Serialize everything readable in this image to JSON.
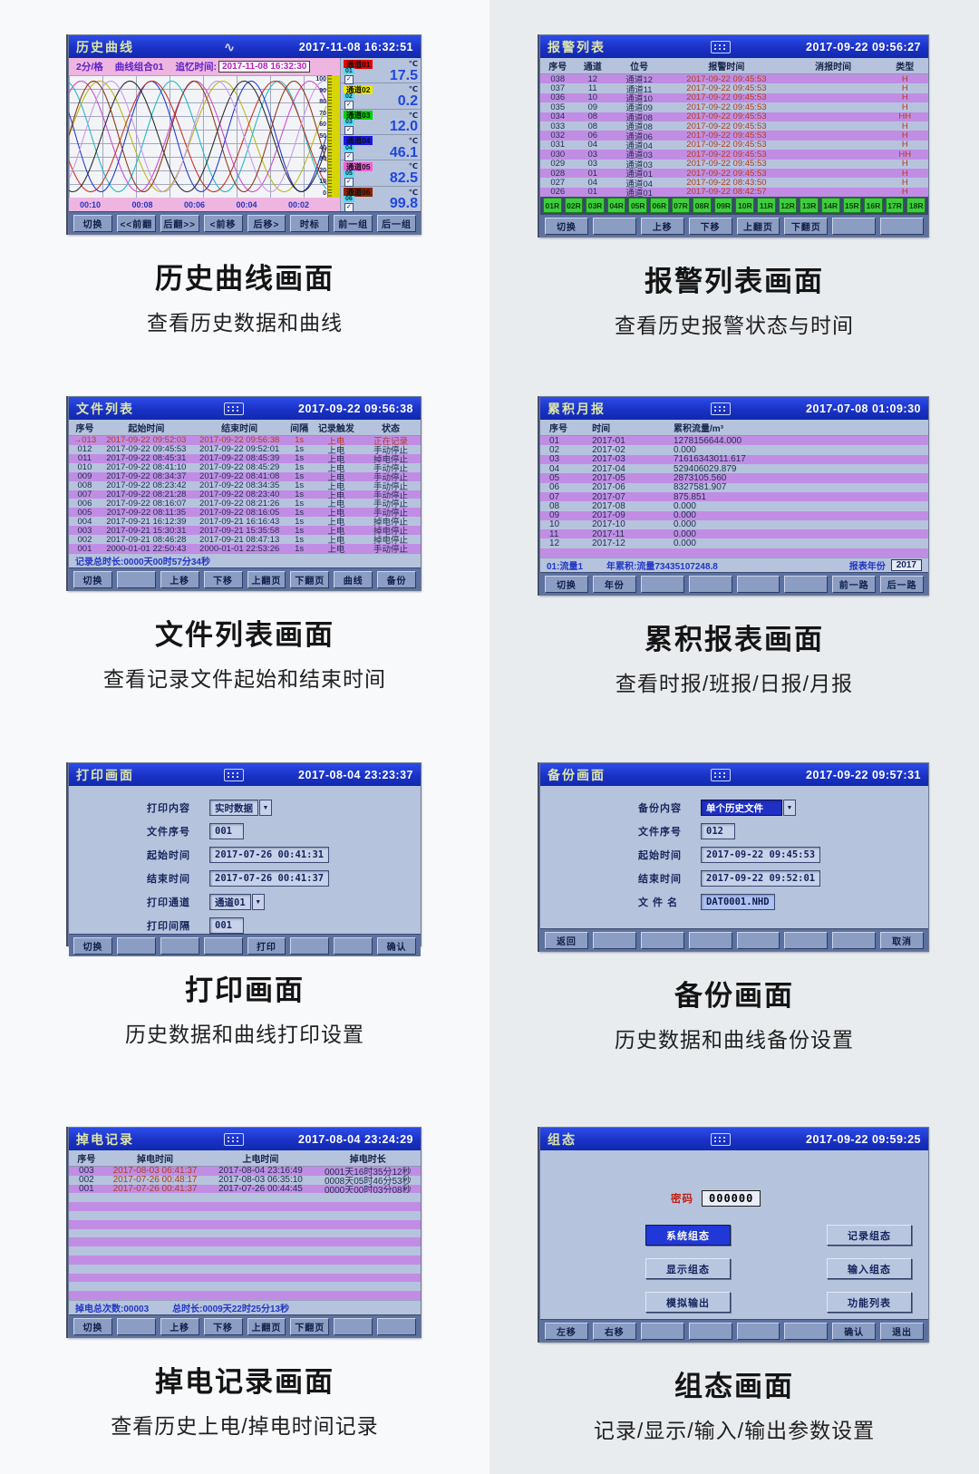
{
  "panels": {
    "history": {
      "title": "历史曲线",
      "logo": "∿",
      "datetime": "2017-11-08 16:32:51",
      "caption": "历史曲线画面",
      "caption_sub": "查看历史数据和曲线",
      "info": {
        "interval": "2分/格",
        "group": "曲线组合01",
        "recall_label": "追忆时间:",
        "recall_value": "2017-11-08 16:32:30"
      },
      "scale_ticks": [
        "100",
        "90",
        "80",
        "70",
        "60",
        "50",
        "40",
        "30",
        "20",
        "10",
        "0"
      ],
      "time_labels": [
        "00:10",
        "00:08",
        "00:06",
        "00:04",
        "00:02"
      ],
      "curve_colors": [
        "#b8b818",
        "#d048d0",
        "#20b8c8",
        "#2038d0",
        "#c83020",
        "#282828",
        "#c898e8",
        "#8a3810"
      ],
      "channels": [
        {
          "name": "通道01",
          "color": "#e80000",
          "num": "01",
          "value": "17.5",
          "unit": "℃"
        },
        {
          "name": "通道02",
          "color": "#e8e800",
          "num": "02",
          "value": "0.2",
          "unit": "℃"
        },
        {
          "name": "通道03",
          "color": "#00d000",
          "num": "03",
          "value": "12.0",
          "unit": "℃"
        },
        {
          "name": "通道04",
          "color": "#1818e8",
          "num": "04",
          "value": "46.1",
          "unit": "℃"
        },
        {
          "name": "通道05",
          "color": "#f060d8",
          "num": "05",
          "value": "82.5",
          "unit": "℃"
        },
        {
          "name": "通道06",
          "color": "#8a2400",
          "num": "06",
          "value": "99.8",
          "unit": "℃"
        }
      ],
      "buttons": [
        "切换",
        "<<前翻",
        "后翻>>",
        "<前移",
        "后移>",
        "时标",
        "前一组",
        "后一组"
      ]
    },
    "alarm": {
      "title": "报警列表",
      "datetime": "2017-09-22 09:56:27",
      "caption": "报警列表画面",
      "caption_sub": "查看历史报警状态与时间",
      "headers": [
        "序号",
        "通道",
        "位号",
        "报警时间",
        "消报时间",
        "类型"
      ],
      "rows": [
        [
          "038",
          "12",
          "通道12",
          "2017-09-22 09:45:53",
          "",
          "H"
        ],
        [
          "037",
          "11",
          "通道11",
          "2017-09-22 09:45:53",
          "",
          "H"
        ],
        [
          "036",
          "10",
          "通道10",
          "2017-09-22 09:45:53",
          "",
          "H"
        ],
        [
          "035",
          "09",
          "通道09",
          "2017-09-22 09:45:53",
          "",
          "H"
        ],
        [
          "034",
          "08",
          "通道08",
          "2017-09-22 09:45:53",
          "",
          "HH"
        ],
        [
          "033",
          "08",
          "通道08",
          "2017-09-22 09:45:53",
          "",
          "H"
        ],
        [
          "032",
          "06",
          "通道06",
          "2017-09-22 09:45:53",
          "",
          "H"
        ],
        [
          "031",
          "04",
          "通道04",
          "2017-09-22 09:45:53",
          "",
          "H"
        ],
        [
          "030",
          "03",
          "通道03",
          "2017-09-22 09:45:53",
          "",
          "HH"
        ],
        [
          "029",
          "03",
          "通道03",
          "2017-09-22 09:45:53",
          "",
          "H"
        ],
        [
          "028",
          "01",
          "通道01",
          "2017-09-22 09:45:53",
          "",
          "H"
        ],
        [
          "027",
          "04",
          "通道04",
          "2017-09-22 08:43:50",
          "",
          "H"
        ],
        [
          "026",
          "01",
          "通道01",
          "2017-09-22 08:42:57",
          "",
          "H"
        ]
      ],
      "tags": [
        "01R",
        "02R",
        "03R",
        "04R",
        "05R",
        "06R",
        "07R",
        "08R",
        "09R",
        "10R",
        "11R",
        "12R",
        "13R",
        "14R",
        "15R",
        "16R",
        "17R",
        "18R"
      ],
      "buttons": [
        "切换",
        "",
        "上移",
        "下移",
        "上翻页",
        "下翻页",
        "",
        ""
      ]
    },
    "files": {
      "title": "文件列表",
      "datetime": "2017-09-22 09:56:38",
      "caption": "文件列表画面",
      "caption_sub": "查看记录文件起始和结束时间",
      "headers": [
        "序号",
        "起始时间",
        "结束时间",
        "间隔",
        "记录触发",
        "状态"
      ],
      "rows": [
        [
          "→013",
          "2017-09-22 09:52:03",
          "2017-09-22 09:56:38",
          "1s",
          "上电",
          "正在记录"
        ],
        [
          "012",
          "2017-09-22 09:45:53",
          "2017-09-22 09:52:01",
          "1s",
          "上电",
          "手动停止"
        ],
        [
          "011",
          "2017-09-22 08:45:31",
          "2017-09-22 08:45:39",
          "1s",
          "上电",
          "掉电停止"
        ],
        [
          "010",
          "2017-09-22 08:41:10",
          "2017-09-22 08:45:29",
          "1s",
          "上电",
          "手动停止"
        ],
        [
          "009",
          "2017-09-22 08:34:37",
          "2017-09-22 08:41:08",
          "1s",
          "上电",
          "手动停止"
        ],
        [
          "008",
          "2017-09-22 08:23:42",
          "2017-09-22 08:34:35",
          "1s",
          "上电",
          "手动停止"
        ],
        [
          "007",
          "2017-09-22 08:21:28",
          "2017-09-22 08:23:40",
          "1s",
          "上电",
          "手动停止"
        ],
        [
          "006",
          "2017-09-22 08:16:07",
          "2017-09-22 08:21:26",
          "1s",
          "上电",
          "手动停止"
        ],
        [
          "005",
          "2017-09-22 08:11:35",
          "2017-09-22 08:16:05",
          "1s",
          "上电",
          "手动停止"
        ],
        [
          "004",
          "2017-09-21 16:12:39",
          "2017-09-21 16:16:43",
          "1s",
          "上电",
          "掉电停止"
        ],
        [
          "003",
          "2017-09-21 15:30:31",
          "2017-09-21 15:35:58",
          "1s",
          "上电",
          "掉电停止"
        ],
        [
          "002",
          "2017-09-21 08:46:28",
          "2017-09-21 08:47:13",
          "1s",
          "上电",
          "掉电停止"
        ],
        [
          "001",
          "2000-01-01 22:50:43",
          "2000-01-01 22:53:26",
          "1s",
          "上电",
          "手动停止"
        ]
      ],
      "footer": "记录总时长:0000天00时57分34秒",
      "buttons": [
        "切换",
        "",
        "上移",
        "下移",
        "上翻页",
        "下翻页",
        "曲线",
        "备份"
      ]
    },
    "monthly": {
      "title": "累积月报",
      "datetime": "2017-07-08 01:09:30",
      "caption": "累积报表画面",
      "caption_sub": "查看时报/班报/日报/月报",
      "headers": [
        "序号",
        "时间",
        "累积流量/m³"
      ],
      "rows": [
        [
          "01",
          "2017-01",
          "1278156644.000"
        ],
        [
          "02",
          "2017-02",
          "0.000"
        ],
        [
          "03",
          "2017-03",
          "71616343011.617"
        ],
        [
          "04",
          "2017-04",
          "529406029.879"
        ],
        [
          "05",
          "2017-05",
          "2873105.560"
        ],
        [
          "06",
          "2017-06",
          "8327581.907"
        ],
        [
          "07",
          "2017-07",
          "875.851"
        ],
        [
          "08",
          "2017-08",
          "0.000"
        ],
        [
          "09",
          "2017-09",
          "0.000"
        ],
        [
          "10",
          "2017-10",
          "0.000"
        ],
        [
          "11",
          "2017-11",
          "0.000"
        ],
        [
          "12",
          "2017-12",
          "0.000"
        ]
      ],
      "footer_left": "01:流量1",
      "footer_mid": "年累积:流量73435107248.8",
      "footer_year_label": "报表年份",
      "footer_year": "2017",
      "buttons": [
        "切换",
        "年份",
        "",
        "",
        "",
        "",
        "前一路",
        "后一路"
      ]
    },
    "print": {
      "title": "打印画面",
      "datetime": "2017-08-04 23:23:37",
      "caption": "打印画面",
      "caption_sub": "历史数据和曲线打印设置",
      "fields": [
        {
          "label": "打印内容",
          "value": "实时数据",
          "type": "select"
        },
        {
          "label": "文件序号",
          "value": "001",
          "type": "input"
        },
        {
          "label": "起始时间",
          "value": "2017-07-26 00:41:31",
          "type": "input"
        },
        {
          "label": "结束时间",
          "value": "2017-07-26 00:41:37",
          "type": "input"
        },
        {
          "label": "打印通道",
          "value": "通道01",
          "type": "select"
        },
        {
          "label": "打印间隔",
          "value": "001",
          "type": "input"
        }
      ],
      "buttons": [
        "切换",
        "",
        "",
        "",
        "打印",
        "",
        "",
        "确认"
      ]
    },
    "backup": {
      "title": "备份画面",
      "datetime": "2017-09-22 09:57:31",
      "caption": "备份画面",
      "caption_sub": "历史数据和曲线备份设置",
      "fields": [
        {
          "label": "备份内容",
          "value": "单个历史文件",
          "type": "select",
          "selected": true
        },
        {
          "label": "文件序号",
          "value": "012",
          "type": "input"
        },
        {
          "label": "起始时间",
          "value": "2017-09-22 09:45:53",
          "type": "input"
        },
        {
          "label": "结束时间",
          "value": "2017-09-22 09:52:01",
          "type": "input"
        },
        {
          "label": "文 件 名",
          "value": "DAT0001.NHD",
          "type": "input",
          "highlight": true
        }
      ],
      "buttons": [
        "返回",
        "",
        "",
        "",
        "",
        "",
        "",
        "取消"
      ]
    },
    "poweroff": {
      "title": "掉电记录",
      "datetime": "2017-08-04 23:24:29",
      "caption": "掉电记录画面",
      "caption_sub": "查看历史上电/掉电时间记录",
      "headers": [
        "序号",
        "掉电时间",
        "上电时间",
        "掉电时长"
      ],
      "rows": [
        [
          "003",
          "2017-08-03 06:41:37",
          "2017-08-04 23:16:49",
          "0001天16时35分12秒"
        ],
        [
          "002",
          "2017-07-26 00:48:17",
          "2017-08-03 06:35:10",
          "0008天05时46分53秒"
        ],
        [
          "001",
          "2017-07-26 00:41:37",
          "2017-07-26 00:44:45",
          "0000天00时03分08秒"
        ]
      ],
      "footer_left": "掉电总次数:00003",
      "footer_right": "总时长:0009天22时25分13秒",
      "buttons": [
        "切换",
        "",
        "上移",
        "下移",
        "上翻页",
        "下翻页",
        "",
        ""
      ]
    },
    "config": {
      "title": "组态",
      "datetime": "2017-09-22 09:59:25",
      "caption": "组态画面",
      "caption_sub": "记录/显示/输入/输出参数设置",
      "password_label": "密码",
      "password_value": "000000",
      "menu_buttons": [
        {
          "label": "系统组态",
          "active": true
        },
        {
          "label": "记录组态"
        },
        {
          "label": "显示组态"
        },
        {
          "label": "输入组态"
        },
        {
          "label": "模拟输出"
        },
        {
          "label": "功能列表"
        }
      ],
      "buttons": [
        "左移",
        "右移",
        "",
        "",
        "",
        "",
        "确认",
        "退出"
      ]
    }
  }
}
